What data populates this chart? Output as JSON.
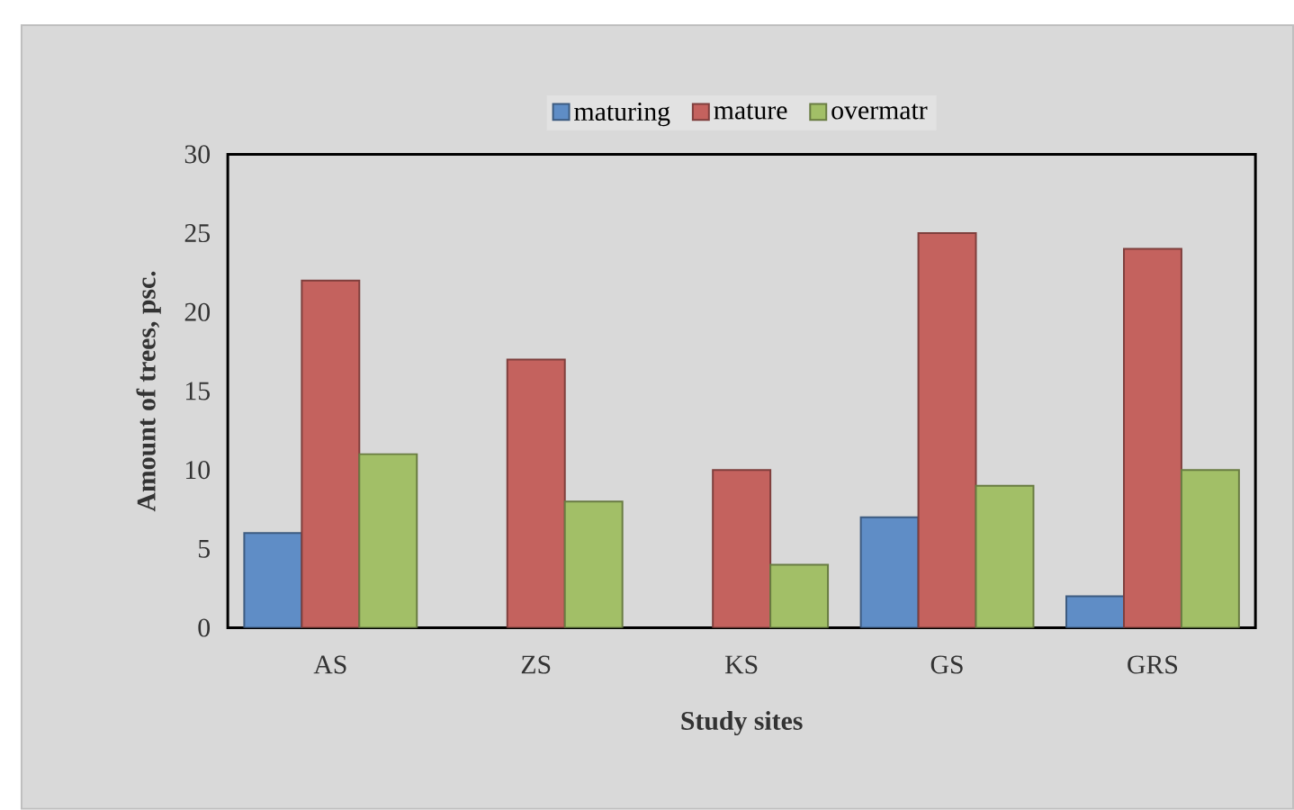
{
  "chart_data": {
    "type": "bar",
    "xlabel": "Study sites",
    "ylabel": "Amount of trees, psc.",
    "categories": [
      "AS",
      "ZS",
      "KS",
      "GS",
      "GRS"
    ],
    "series": [
      {
        "name": "maturing",
        "color": "#5f8dc6",
        "values": [
          6,
          null,
          null,
          7,
          2
        ]
      },
      {
        "name": "mature",
        "color": "#c4625e",
        "values": [
          22,
          17,
          10,
          25,
          24
        ]
      },
      {
        "name": "overmatr",
        "color": "#a2bf67",
        "values": [
          11,
          8,
          4,
          9,
          10
        ]
      }
    ],
    "ylim": [
      0,
      30
    ],
    "yticks": [
      0,
      5,
      10,
      15,
      20,
      25,
      30
    ],
    "grid": false,
    "legend": "top"
  }
}
